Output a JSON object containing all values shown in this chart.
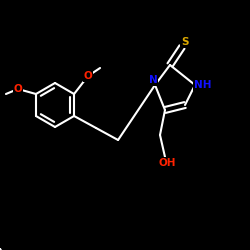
{
  "background": "#000000",
  "bond_color": "#ffffff",
  "bond_width": 1.5,
  "atom_colors": {
    "O": "#ff2200",
    "N": "#1111ff",
    "S": "#ddaa00",
    "C": "#ffffff",
    "H": "#ffffff"
  },
  "font_size": 7.5,
  "figsize": [
    2.5,
    2.5
  ],
  "dpi": 100
}
